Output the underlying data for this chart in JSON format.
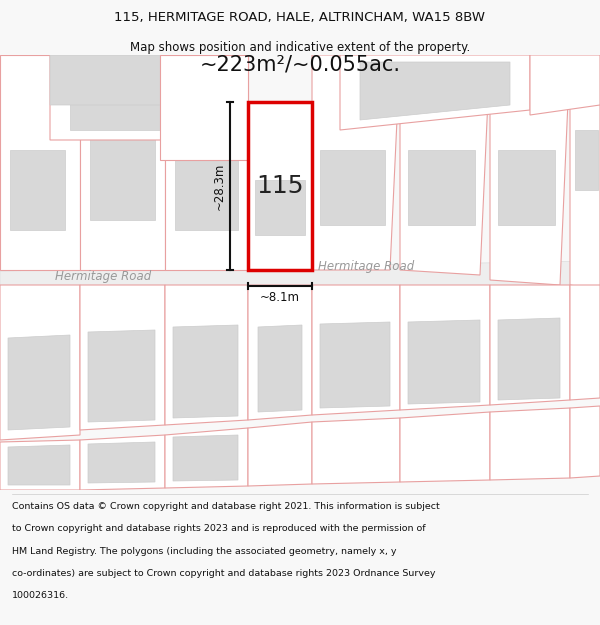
{
  "title_line1": "115, HERMITAGE ROAD, HALE, ALTRINCHAM, WA15 8BW",
  "title_line2": "Map shows position and indicative extent of the property.",
  "area_text": "~223m²/~0.055ac.",
  "house_number": "115",
  "dim_width": "~8.1m",
  "dim_height": "~28.3m",
  "road_name": "Hermitage Road",
  "footer_lines": [
    "Contains OS data © Crown copyright and database right 2021. This information is subject",
    "to Crown copyright and database rights 2023 and is reproduced with the permission of",
    "HM Land Registry. The polygons (including the associated geometry, namely x, y",
    "co-ordinates) are subject to Crown copyright and database rights 2023 Ordnance Survey",
    "100026316."
  ],
  "bg_color": "#f8f8f8",
  "map_bg": "#ffffff",
  "plot_fill": "#ffffff",
  "plot_edge": "#dd0000",
  "parcel_edge": "#e8a0a0",
  "building_fill": "#d8d8d8",
  "building_edge": "#cccccc",
  "road_fill": "#eeeeee",
  "title_color": "#111111",
  "footer_color": "#111111",
  "area_color": "#111111",
  "dim_color": "#111111",
  "road_label_color": "#999999"
}
